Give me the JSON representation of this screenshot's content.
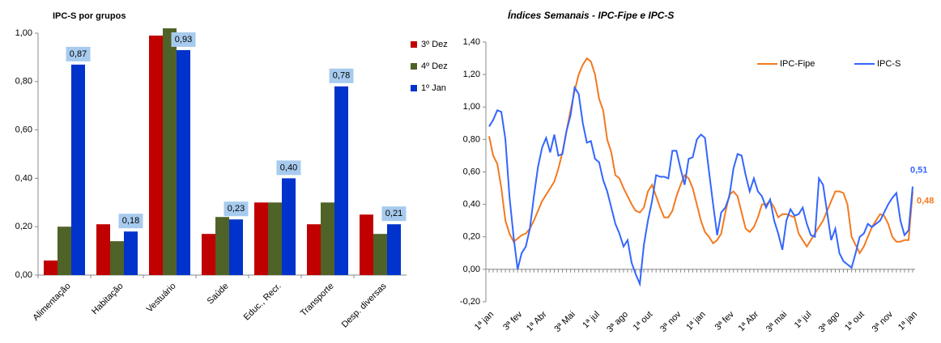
{
  "chart_data": [
    {
      "type": "bar",
      "title": "IPC-S por grupos",
      "categories": [
        "Alimentação",
        "Habitação",
        "Vestuário",
        "Saúde",
        "Educ., Recr.",
        "Transporte",
        "Desp. diversas"
      ],
      "series": [
        {
          "name": "3º Dez",
          "color": "#c00000",
          "values": [
            0.06,
            0.21,
            0.99,
            0.17,
            0.3,
            0.21,
            0.25
          ]
        },
        {
          "name": "4º Dez",
          "color": "#4f6228",
          "values": [
            0.2,
            0.14,
            1.02,
            0.24,
            0.3,
            0.3,
            0.17
          ]
        },
        {
          "name": "1º Jan",
          "color": "#0033cc",
          "values": [
            0.87,
            0.18,
            0.93,
            0.23,
            0.4,
            0.78,
            0.21
          ],
          "value_labels": [
            "0,87",
            "0,18",
            "0,93",
            "0,23",
            "0,40",
            "0,78",
            "0,21"
          ]
        }
      ],
      "ylim": [
        0,
        1.0
      ],
      "yticks": [
        {
          "value": 0,
          "label": "0,00"
        },
        {
          "value": 0.2,
          "label": "0,20"
        },
        {
          "value": 0.4,
          "label": "0,40"
        },
        {
          "value": 0.6,
          "label": "0,60"
        },
        {
          "value": 0.8,
          "label": "0,80"
        },
        {
          "value": 1.0,
          "label": "1,00"
        }
      ],
      "grid": false
    },
    {
      "type": "line",
      "title": "Índices Semanais - IPC-Fipe  e IPC-S",
      "categories": [
        "1ª jan",
        null,
        null,
        null,
        null,
        null,
        null,
        "3ª fev",
        null,
        null,
        null,
        null,
        null,
        "1ª Abr",
        null,
        null,
        null,
        null,
        null,
        null,
        "3ª Mai",
        null,
        null,
        null,
        null,
        null,
        "1ª jul",
        null,
        null,
        null,
        null,
        null,
        null,
        "3ª ago",
        null,
        null,
        null,
        null,
        null,
        "1ª out",
        null,
        null,
        null,
        null,
        null,
        null,
        "3ª nov",
        null,
        null,
        null,
        null,
        null,
        "1ª jan",
        null,
        null,
        null,
        null,
        null,
        null,
        "3ª fev",
        null,
        null,
        null,
        null,
        null,
        "1ª Abr",
        null,
        null,
        null,
        null,
        null,
        null,
        "3ª mai",
        null,
        null,
        null,
        null,
        null,
        "1ª jul",
        null,
        null,
        null,
        null,
        null,
        null,
        "3ª ago",
        null,
        null,
        null,
        null,
        null,
        "1ª out",
        null,
        null,
        null,
        null,
        null,
        null,
        "3ª nov",
        null,
        null,
        null,
        null,
        null,
        "1ª jan"
      ],
      "series": [
        {
          "name": "IPC-Fipe",
          "color": "#f47920",
          "values": [
            0.82,
            0.7,
            0.65,
            0.5,
            0.3,
            0.22,
            0.17,
            0.19,
            0.21,
            0.22,
            0.25,
            0.3,
            0.36,
            0.42,
            0.46,
            0.5,
            0.54,
            0.62,
            0.72,
            0.85,
            0.98,
            1.1,
            1.2,
            1.26,
            1.3,
            1.28,
            1.2,
            1.05,
            0.98,
            0.8,
            0.72,
            0.58,
            0.56,
            0.5,
            0.45,
            0.4,
            0.36,
            0.35,
            0.38,
            0.48,
            0.52,
            0.45,
            0.38,
            0.32,
            0.32,
            0.36,
            0.45,
            0.52,
            0.58,
            0.56,
            0.5,
            0.4,
            0.3,
            0.23,
            0.2,
            0.16,
            0.18,
            0.22,
            0.35,
            0.46,
            0.48,
            0.45,
            0.35,
            0.25,
            0.23,
            0.26,
            0.32,
            0.4,
            0.4,
            0.42,
            0.38,
            0.32,
            0.34,
            0.34,
            0.33,
            0.32,
            0.22,
            0.18,
            0.14,
            0.18,
            0.22,
            0.26,
            0.3,
            0.36,
            0.42,
            0.48,
            0.48,
            0.47,
            0.4,
            0.2,
            0.15,
            0.1,
            0.14,
            0.2,
            0.26,
            0.3,
            0.34,
            0.33,
            0.28,
            0.2,
            0.17,
            0.17,
            0.18,
            0.18,
            0.48
          ],
          "value_labels": [
            null,
            null,
            null,
            null,
            null,
            null,
            null,
            null,
            null,
            null,
            null,
            null,
            null,
            null,
            null,
            null,
            null,
            null,
            null,
            null,
            null,
            null,
            null,
            null,
            null,
            null,
            null,
            null,
            null,
            null,
            null,
            null,
            null,
            null,
            null,
            null,
            null,
            null,
            null,
            null,
            null,
            null,
            null,
            null,
            null,
            null,
            null,
            null,
            null,
            null,
            null,
            null,
            null,
            null,
            null,
            null,
            null,
            null,
            null,
            null,
            null,
            null,
            null,
            null,
            null,
            null,
            null,
            null,
            null,
            null,
            null,
            null,
            null,
            null,
            null,
            null,
            null,
            null,
            null,
            null,
            null,
            null,
            null,
            null,
            null,
            null,
            null,
            null,
            null,
            null,
            null,
            null,
            null,
            null,
            null,
            null,
            null,
            null,
            null,
            null,
            null,
            null,
            null,
            null,
            "0,48"
          ]
        },
        {
          "name": "IPC-S",
          "color": "#3366ff",
          "values": [
            0.88,
            0.92,
            0.98,
            0.97,
            0.8,
            0.45,
            0.2,
            0.0,
            0.1,
            0.14,
            0.25,
            0.45,
            0.63,
            0.75,
            0.81,
            0.72,
            0.83,
            0.7,
            0.71,
            0.85,
            0.95,
            1.12,
            1.08,
            0.9,
            0.78,
            0.79,
            0.68,
            0.66,
            0.55,
            0.48,
            0.38,
            0.28,
            0.22,
            0.14,
            0.18,
            0.04,
            -0.03,
            -0.09,
            0.15,
            0.3,
            0.42,
            0.58,
            0.57,
            0.57,
            0.56,
            0.73,
            0.73,
            0.62,
            0.52,
            0.68,
            0.69,
            0.8,
            0.83,
            0.81,
            0.6,
            0.4,
            0.21,
            0.35,
            0.38,
            0.45,
            0.62,
            0.71,
            0.7,
            0.58,
            0.48,
            0.56,
            0.48,
            0.45,
            0.38,
            0.43,
            0.3,
            0.22,
            0.12,
            0.3,
            0.37,
            0.33,
            0.34,
            0.38,
            0.28,
            0.21,
            0.2,
            0.56,
            0.52,
            0.35,
            0.18,
            0.25,
            0.1,
            0.05,
            0.03,
            0.01,
            0.1,
            0.2,
            0.22,
            0.28,
            0.26,
            0.28,
            0.3,
            0.35,
            0.4,
            0.44,
            0.47,
            0.3,
            0.21,
            0.24,
            0.51
          ],
          "value_labels": [
            null,
            null,
            null,
            null,
            null,
            null,
            null,
            null,
            null,
            null,
            null,
            null,
            null,
            null,
            null,
            null,
            null,
            null,
            null,
            null,
            null,
            null,
            null,
            null,
            null,
            null,
            null,
            null,
            null,
            null,
            null,
            null,
            null,
            null,
            null,
            null,
            null,
            null,
            null,
            null,
            null,
            null,
            null,
            null,
            null,
            null,
            null,
            null,
            null,
            null,
            null,
            null,
            null,
            null,
            null,
            null,
            null,
            null,
            null,
            null,
            null,
            null,
            null,
            null,
            null,
            null,
            null,
            null,
            null,
            null,
            null,
            null,
            null,
            null,
            null,
            null,
            null,
            null,
            null,
            null,
            null,
            null,
            null,
            null,
            null,
            null,
            null,
            null,
            null,
            null,
            null,
            null,
            null,
            null,
            null,
            null,
            null,
            null,
            null,
            null,
            null,
            null,
            null,
            null,
            "0,51"
          ]
        }
      ],
      "ylim": [
        -0.2,
        1.4
      ],
      "yticks": [
        {
          "value": -0.2,
          "label": "-0,20"
        },
        {
          "value": 0,
          "label": "0,00"
        },
        {
          "value": 0.2,
          "label": "0,20"
        },
        {
          "value": 0.4,
          "label": "0,40"
        },
        {
          "value": 0.6,
          "label": "0,60"
        },
        {
          "value": 0.8,
          "label": "0,80"
        },
        {
          "value": 1.0,
          "label": "1,00"
        },
        {
          "value": 1.2,
          "label": "1,20"
        },
        {
          "value": 1.4,
          "label": "1,40"
        }
      ],
      "grid": false
    }
  ]
}
